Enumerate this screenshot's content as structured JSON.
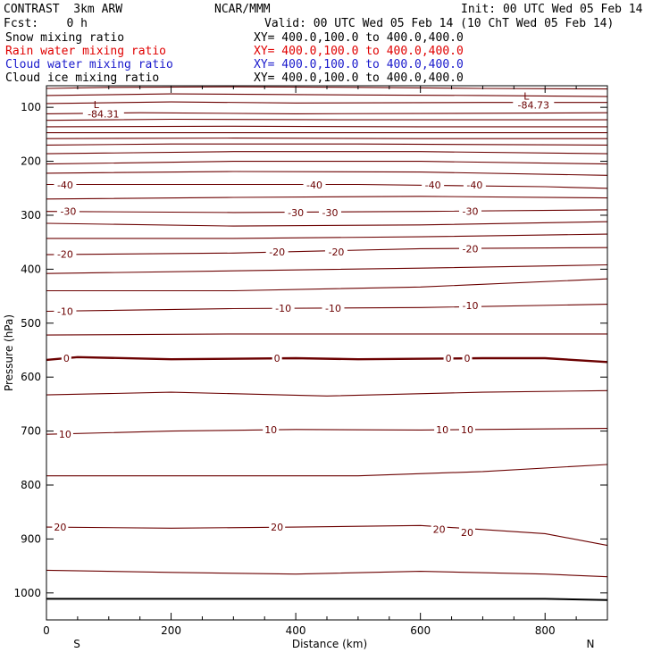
{
  "header": {
    "left_line1": "CONTRAST  3km ARW",
    "center_line1": "NCAR/MMM",
    "right_line1": "Init: 00 UTC Wed 05 Feb 14",
    "left_line2": "Fcst:    0 h",
    "right_line2": "Valid: 00 UTC Wed 05 Feb 14 (10 ChT Wed 05 Feb 14)"
  },
  "fields": [
    {
      "name": "Snow mixing ratio",
      "xy": "XY= 400.0,100.0 to 400.0,400.0",
      "color": "#000000"
    },
    {
      "name": "Rain water mixing ratio",
      "xy": "XY= 400.0,100.0 to 400.0,400.0",
      "color": "#e00000"
    },
    {
      "name": "Cloud water mixing ratio",
      "xy": "XY= 400.0,100.0 to 400.0,400.0",
      "color": "#1a1acc"
    },
    {
      "name": "Cloud ice mixing ratio",
      "xy": "XY= 400.0,100.0 to 400.0,400.0",
      "color": "#000000"
    }
  ],
  "chart_data": {
    "type": "line",
    "xlabel": "Distance (km)",
    "ylabel": "Pressure (hPa)",
    "xlim": [
      0,
      900
    ],
    "ylim": [
      1050,
      60
    ],
    "x_ticks": [
      0,
      200,
      400,
      600,
      800
    ],
    "y_ticks": [
      100,
      200,
      300,
      400,
      500,
      600,
      700,
      800,
      900,
      1000
    ],
    "end_labels": {
      "left": "S",
      "right": "N"
    },
    "contour_color": "#6b0000",
    "surface_color": "#000000",
    "isotherms": [
      {
        "pts": [
          [
            0,
            65
          ],
          [
            100,
            63
          ],
          [
            300,
            62
          ],
          [
            500,
            63
          ],
          [
            700,
            65
          ],
          [
            900,
            66
          ]
        ]
      },
      {
        "pts": [
          [
            0,
            78
          ],
          [
            200,
            75
          ],
          [
            500,
            77
          ],
          [
            700,
            78
          ],
          [
            900,
            80
          ]
        ]
      },
      {
        "pts": [
          [
            0,
            93
          ],
          [
            200,
            90
          ],
          [
            400,
            92
          ],
          [
            700,
            91
          ],
          [
            900,
            91
          ]
        ]
      },
      {
        "pts": [
          [
            0,
            112
          ],
          [
            150,
            110
          ],
          [
            400,
            112
          ],
          [
            700,
            111
          ],
          [
            900,
            110
          ]
        ]
      },
      {
        "pts": [
          [
            0,
            124
          ],
          [
            200,
            122
          ],
          [
            500,
            123
          ],
          [
            900,
            123
          ]
        ]
      },
      {
        "pts": [
          [
            0,
            136
          ],
          [
            300,
            135
          ],
          [
            600,
            136
          ],
          [
            900,
            136
          ]
        ]
      },
      {
        "pts": [
          [
            0,
            147
          ],
          [
            400,
            147
          ],
          [
            900,
            147
          ]
        ]
      },
      {
        "pts": [
          [
            0,
            158
          ],
          [
            300,
            157
          ],
          [
            600,
            158
          ],
          [
            900,
            158
          ]
        ]
      },
      {
        "pts": [
          [
            0,
            170
          ],
          [
            200,
            168
          ],
          [
            500,
            168
          ],
          [
            900,
            170
          ]
        ]
      },
      {
        "pts": [
          [
            0,
            186
          ],
          [
            300,
            182
          ],
          [
            600,
            182
          ],
          [
            900,
            186
          ]
        ]
      },
      {
        "pts": [
          [
            0,
            205
          ],
          [
            300,
            200
          ],
          [
            600,
            200
          ],
          [
            900,
            205
          ]
        ]
      },
      {
        "pts": [
          [
            0,
            222
          ],
          [
            300,
            219
          ],
          [
            600,
            220
          ],
          [
            900,
            226
          ]
        ]
      },
      {
        "pts": [
          [
            0,
            243
          ],
          [
            200,
            243
          ],
          [
            500,
            243
          ],
          [
            800,
            247
          ],
          [
            900,
            250
          ]
        ]
      },
      {
        "pts": [
          [
            0,
            270
          ],
          [
            300,
            267
          ],
          [
            600,
            265
          ],
          [
            900,
            268
          ]
        ]
      },
      {
        "pts": [
          [
            0,
            293
          ],
          [
            300,
            295
          ],
          [
            600,
            293
          ],
          [
            900,
            290
          ]
        ]
      },
      {
        "pts": [
          [
            0,
            315
          ],
          [
            300,
            320
          ],
          [
            600,
            318
          ],
          [
            900,
            312
          ]
        ]
      },
      {
        "pts": [
          [
            0,
            343
          ],
          [
            300,
            343
          ],
          [
            600,
            340
          ],
          [
            900,
            335
          ]
        ]
      },
      {
        "pts": [
          [
            0,
            373
          ],
          [
            300,
            370
          ],
          [
            600,
            362
          ],
          [
            900,
            360
          ]
        ]
      },
      {
        "pts": [
          [
            0,
            408
          ],
          [
            300,
            403
          ],
          [
            600,
            398
          ],
          [
            900,
            392
          ]
        ]
      },
      {
        "pts": [
          [
            0,
            440
          ],
          [
            300,
            440
          ],
          [
            600,
            433
          ],
          [
            900,
            418
          ]
        ]
      },
      {
        "pts": [
          [
            0,
            478
          ],
          [
            300,
            473
          ],
          [
            600,
            471
          ],
          [
            900,
            465
          ]
        ]
      },
      {
        "pts": [
          [
            0,
            522
          ],
          [
            300,
            520
          ],
          [
            600,
            520
          ],
          [
            900,
            520
          ]
        ]
      },
      {
        "pts": [
          [
            0,
            633
          ],
          [
            200,
            628
          ],
          [
            450,
            635
          ],
          [
            700,
            628
          ],
          [
            900,
            625
          ]
        ]
      },
      {
        "pts": [
          [
            0,
            706
          ],
          [
            200,
            700
          ],
          [
            400,
            697
          ],
          [
            600,
            698
          ],
          [
            900,
            695
          ]
        ]
      },
      {
        "pts": [
          [
            0,
            783
          ],
          [
            200,
            783
          ],
          [
            500,
            783
          ],
          [
            700,
            775
          ],
          [
            900,
            762
          ]
        ]
      },
      {
        "pts": [
          [
            0,
            878
          ],
          [
            200,
            880
          ],
          [
            400,
            878
          ],
          [
            600,
            875
          ],
          [
            800,
            890
          ],
          [
            900,
            912
          ]
        ]
      },
      {
        "pts": [
          [
            0,
            958
          ],
          [
            200,
            962
          ],
          [
            400,
            965
          ],
          [
            600,
            960
          ],
          [
            800,
            965
          ],
          [
            900,
            970
          ]
        ]
      }
    ],
    "freezing_line": {
      "pts": [
        [
          0,
          568
        ],
        [
          50,
          563
        ],
        [
          200,
          567
        ],
        [
          400,
          565
        ],
        [
          500,
          567
        ],
        [
          700,
          565
        ],
        [
          800,
          565
        ],
        [
          900,
          572
        ]
      ],
      "label": "0"
    },
    "surface": {
      "pts": [
        [
          0,
          1011
        ],
        [
          800,
          1011
        ],
        [
          900,
          1013
        ]
      ]
    },
    "contour_labels": [
      {
        "text": "-40",
        "x": 30,
        "p": 244
      },
      {
        "text": "-40",
        "x": 430,
        "p": 244
      },
      {
        "text": "-40",
        "x": 620,
        "p": 244
      },
      {
        "text": "-40",
        "x": 687,
        "p": 244
      },
      {
        "text": "-30",
        "x": 35,
        "p": 293
      },
      {
        "text": "-30",
        "x": 400,
        "p": 295
      },
      {
        "text": "-30",
        "x": 455,
        "p": 295
      },
      {
        "text": "-30",
        "x": 680,
        "p": 293
      },
      {
        "text": "-20",
        "x": 30,
        "p": 372
      },
      {
        "text": "-20",
        "x": 370,
        "p": 368
      },
      {
        "text": "-20",
        "x": 465,
        "p": 368
      },
      {
        "text": "-20",
        "x": 680,
        "p": 362
      },
      {
        "text": "-10",
        "x": 30,
        "p": 478
      },
      {
        "text": "-10",
        "x": 380,
        "p": 472
      },
      {
        "text": "-10",
        "x": 460,
        "p": 472
      },
      {
        "text": "-10",
        "x": 680,
        "p": 467
      },
      {
        "text": "0",
        "x": 32,
        "p": 565
      },
      {
        "text": "0",
        "x": 370,
        "p": 565
      },
      {
        "text": "0",
        "x": 645,
        "p": 565
      },
      {
        "text": "0",
        "x": 675,
        "p": 565
      },
      {
        "text": "10",
        "x": 30,
        "p": 706
      },
      {
        "text": "10",
        "x": 360,
        "p": 697
      },
      {
        "text": "10",
        "x": 635,
        "p": 697
      },
      {
        "text": "10",
        "x": 675,
        "p": 697
      },
      {
        "text": "20",
        "x": 22,
        "p": 878
      },
      {
        "text": "20",
        "x": 370,
        "p": 878
      },
      {
        "text": "20",
        "x": 630,
        "p": 882
      },
      {
        "text": "20",
        "x": 675,
        "p": 888
      }
    ],
    "annotations": [
      {
        "mark": "L",
        "value": "-84.31",
        "x": 80,
        "p": 95,
        "vp": 112
      },
      {
        "mark": "L",
        "value": "-84.73",
        "x": 770,
        "p": 79,
        "vp": 96
      }
    ]
  }
}
